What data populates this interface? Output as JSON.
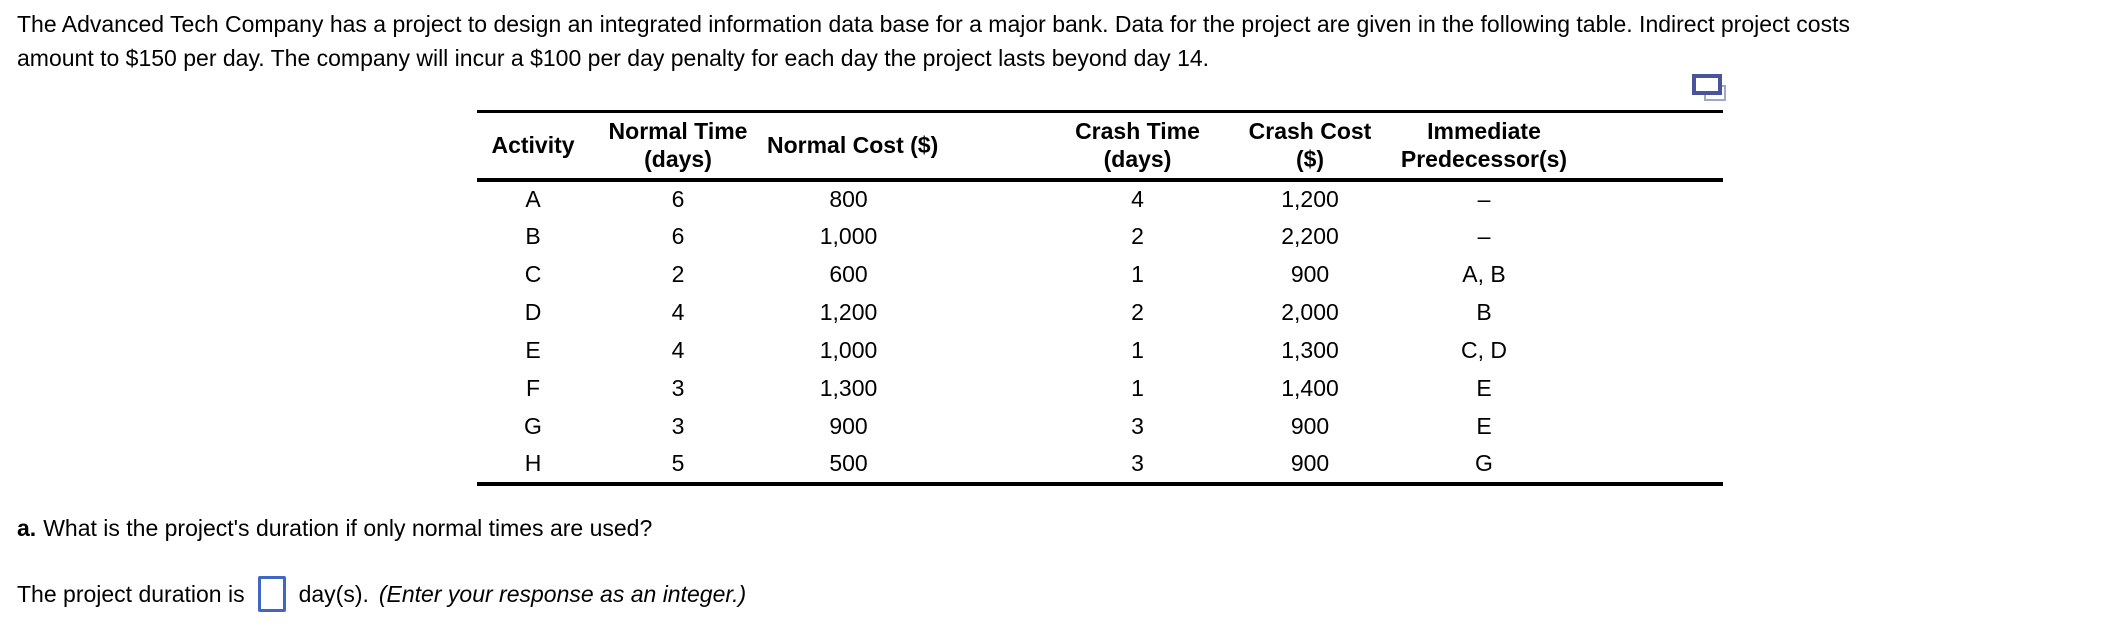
{
  "problem": {
    "line1": "The Advanced Tech Company has a project to design an integrated information data base for a major bank. Data for the project are given in the following table. Indirect project costs",
    "line2": "amount to $150 per day. The company will incur a $100 per day penalty for each day the project lasts beyond day 14."
  },
  "table": {
    "columns": [
      {
        "line1": "Activity",
        "line2": ""
      },
      {
        "line1": "Normal Time",
        "line2": "(days)"
      },
      {
        "line1": "Normal Cost ($)",
        "line2": ""
      },
      {
        "line1": "Crash Time",
        "line2": "(days)"
      },
      {
        "line1": "Crash Cost",
        "line2": "($)"
      },
      {
        "line1": "Immediate",
        "line2": "Predecessor(s)"
      }
    ],
    "rows": [
      [
        "A",
        "6",
        "800",
        "4",
        "1,200",
        "–"
      ],
      [
        "B",
        "6",
        "1,000",
        "2",
        "2,200",
        "–"
      ],
      [
        "C",
        "2",
        "600",
        "1",
        "900",
        "A, B"
      ],
      [
        "D",
        "4",
        "1,200",
        "2",
        "2,000",
        "B"
      ],
      [
        "E",
        "4",
        "1,000",
        "1",
        "1,300",
        "C, D"
      ],
      [
        "F",
        "3",
        "1,300",
        "1",
        "1,400",
        "E"
      ],
      [
        "G",
        "3",
        "900",
        "3",
        "900",
        "E"
      ],
      [
        "H",
        "5",
        "500",
        "3",
        "900",
        "G"
      ]
    ]
  },
  "question_a": {
    "label": "a.",
    "text": "What is the project's duration if only normal times are used?"
  },
  "answer": {
    "prefix": "The project duration is",
    "input_value": "",
    "suffix": "day(s).",
    "hint": "(Enter your response as an integer.)"
  },
  "colors": {
    "answer_box_border": "#3e68c4",
    "copy_icon_front": "#4a549b",
    "copy_icon_back": "#9fa7ce",
    "text": "#000000",
    "background": "#ffffff"
  },
  "icons": {
    "copy_table": "copy-table-icon"
  }
}
